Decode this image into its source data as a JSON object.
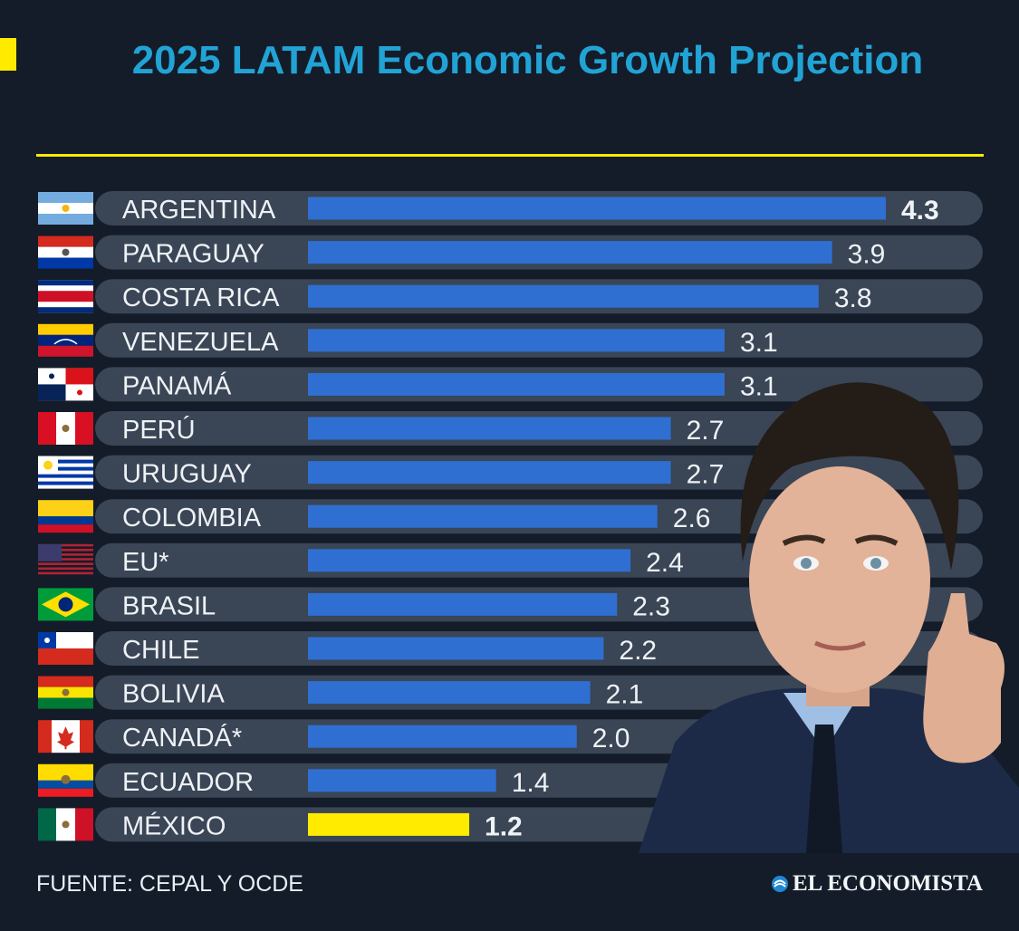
{
  "title": "2025 LATAM Economic Growth Projection",
  "colors": {
    "accent_yellow": "#ffeb00",
    "bar_blue": "#2f6fd1",
    "bar_highlight": "#ffeb00",
    "row_bg": "#3a4555",
    "title_blue": "#22a3d6",
    "background": "#131c28"
  },
  "chart_data": {
    "type": "bar",
    "orientation": "horizontal",
    "title": "2025 LATAM Economic Growth Projection",
    "categories": [
      "ARGENTINA",
      "PARAGUAY",
      "COSTA RICA",
      "VENEZUELA",
      "PANAMÁ",
      "PERÚ",
      "URUGUAY",
      "COLOMBIA",
      "EU*",
      "BRASIL",
      "CHILE",
      "BOLIVIA",
      "CANADÁ*",
      "ECUADOR",
      "MÉXICO"
    ],
    "values": [
      4.3,
      3.9,
      3.8,
      3.1,
      3.1,
      2.7,
      2.7,
      2.6,
      2.4,
      2.3,
      2.2,
      2.1,
      2.0,
      1.4,
      1.2
    ],
    "value_labels": [
      "4.3",
      "3.9",
      "3.8",
      "3.1",
      "3.1",
      "2.7",
      "2.7",
      "2.6",
      "2.4",
      "2.3",
      "2.2",
      "2.1",
      "2.0",
      "1.4",
      "1.2"
    ],
    "highlight": [
      "ARGENTINA",
      "MÉXICO"
    ],
    "flags": [
      "argentina-flag",
      "paraguay-flag",
      "costa-rica-flag",
      "venezuela-flag",
      "panama-flag",
      "peru-flag",
      "uruguay-flag",
      "colombia-flag",
      "usa-flag",
      "brazil-flag",
      "chile-flag",
      "bolivia-flag",
      "canada-flag",
      "ecuador-flag",
      "mexico-flag"
    ],
    "xlim": [
      0,
      4.3
    ],
    "grid": false,
    "legend": "none",
    "xlabel": "",
    "ylabel": ""
  },
  "footer": {
    "source": "FUENTE: CEPAL Y OCDE",
    "brand": "EL ECONOMISTA"
  },
  "photo_icon": "person-thumbs-up"
}
